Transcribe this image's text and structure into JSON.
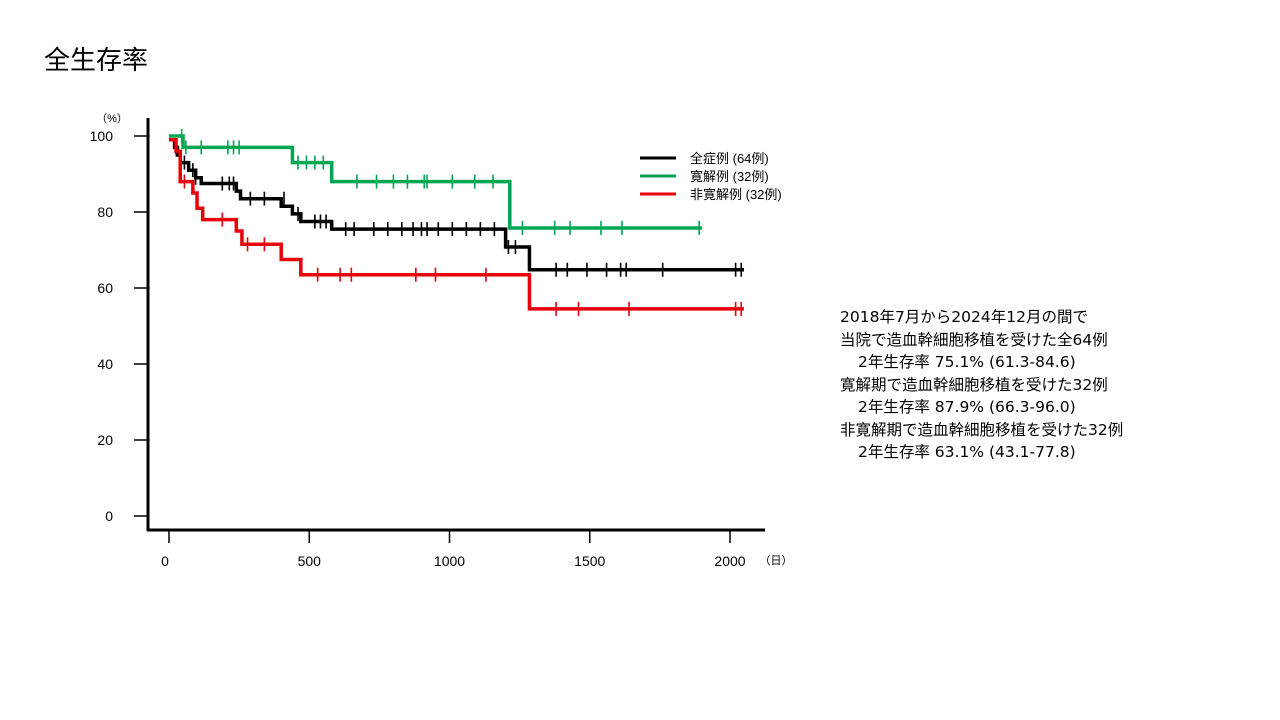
{
  "slide": {
    "title": "全生存率"
  },
  "chart_data": {
    "type": "line",
    "xlim": [
      0,
      2100
    ],
    "ylim": [
      0,
      100
    ],
    "x_ticks": [
      0,
      500,
      1000,
      1500,
      2000
    ],
    "y_ticks": [
      0,
      20,
      40,
      60,
      80,
      100
    ],
    "y_unit": "（%）",
    "x_unit": "（日）",
    "legend_position": "top-right",
    "series": [
      {
        "name": "全症例 (64例)",
        "color": "#000000",
        "steps": [
          [
            0,
            99
          ],
          [
            12,
            99
          ],
          [
            20,
            97
          ],
          [
            30,
            95
          ],
          [
            40,
            93
          ],
          [
            70,
            91
          ],
          [
            95,
            89
          ],
          [
            115,
            87.5
          ],
          [
            240,
            85.5
          ],
          [
            255,
            83.5
          ],
          [
            400,
            81.5
          ],
          [
            440,
            79.5
          ],
          [
            470,
            77.5
          ],
          [
            580,
            75.5
          ],
          [
            1200,
            70.8
          ],
          [
            1285,
            64.8
          ],
          [
            2050,
            64.8
          ]
        ],
        "censors": [
          [
            25,
            97
          ],
          [
            55,
            93
          ],
          [
            85,
            91
          ],
          [
            95,
            89
          ],
          [
            190,
            87.5
          ],
          [
            215,
            87.5
          ],
          [
            230,
            87.5
          ],
          [
            290,
            83.5
          ],
          [
            340,
            83.5
          ],
          [
            410,
            83.5
          ],
          [
            460,
            79.5
          ],
          [
            520,
            77.5
          ],
          [
            540,
            77.5
          ],
          [
            560,
            77.5
          ],
          [
            630,
            75.5
          ],
          [
            660,
            75.5
          ],
          [
            730,
            75.5
          ],
          [
            780,
            75.5
          ],
          [
            830,
            75.5
          ],
          [
            870,
            75.5
          ],
          [
            900,
            75.5
          ],
          [
            920,
            75.5
          ],
          [
            960,
            75.5
          ],
          [
            1010,
            75.5
          ],
          [
            1060,
            75.5
          ],
          [
            1110,
            75.5
          ],
          [
            1160,
            75.5
          ],
          [
            1210,
            70.8
          ],
          [
            1235,
            70.8
          ],
          [
            1380,
            64.8
          ],
          [
            1420,
            64.8
          ],
          [
            1490,
            64.8
          ],
          [
            1560,
            64.8
          ],
          [
            1610,
            64.8
          ],
          [
            1630,
            64.8
          ],
          [
            1760,
            64.8
          ],
          [
            2020,
            64.8
          ],
          [
            2040,
            64.8
          ]
        ]
      },
      {
        "name": "寛解例 (32例)",
        "color": "#00a651",
        "steps": [
          [
            0,
            100
          ],
          [
            40,
            100
          ],
          [
            50,
            97
          ],
          [
            440,
            93
          ],
          [
            580,
            88
          ],
          [
            1215,
            75.8
          ],
          [
            1900,
            75.8
          ]
        ],
        "censors": [
          [
            45,
            100
          ],
          [
            60,
            97
          ],
          [
            115,
            97
          ],
          [
            210,
            97
          ],
          [
            230,
            97
          ],
          [
            250,
            97
          ],
          [
            460,
            93
          ],
          [
            490,
            93
          ],
          [
            520,
            93
          ],
          [
            550,
            93
          ],
          [
            670,
            88
          ],
          [
            740,
            88
          ],
          [
            800,
            88
          ],
          [
            850,
            88
          ],
          [
            910,
            88
          ],
          [
            920,
            88
          ],
          [
            1010,
            88
          ],
          [
            1090,
            88
          ],
          [
            1155,
            88
          ],
          [
            1260,
            75.8
          ],
          [
            1375,
            75.8
          ],
          [
            1430,
            75.8
          ],
          [
            1540,
            75.8
          ],
          [
            1615,
            75.8
          ],
          [
            1890,
            75.8
          ]
        ]
      },
      {
        "name": "非寛解例 (32例)",
        "color": "#e8000b",
        "steps": [
          [
            0,
            99
          ],
          [
            25,
            96
          ],
          [
            40,
            88
          ],
          [
            85,
            85
          ],
          [
            100,
            81
          ],
          [
            120,
            78
          ],
          [
            240,
            75
          ],
          [
            260,
            71.5
          ],
          [
            400,
            67.5
          ],
          [
            470,
            63.5
          ],
          [
            1285,
            54.5
          ],
          [
            2050,
            54.5
          ]
        ],
        "censors": [
          [
            55,
            88
          ],
          [
            190,
            78
          ],
          [
            280,
            71.5
          ],
          [
            340,
            71.5
          ],
          [
            530,
            63.5
          ],
          [
            610,
            63.5
          ],
          [
            650,
            63.5
          ],
          [
            880,
            63.5
          ],
          [
            950,
            63.5
          ],
          [
            1130,
            63.5
          ],
          [
            1380,
            54.5
          ],
          [
            1460,
            54.5
          ],
          [
            1640,
            54.5
          ],
          [
            2020,
            54.5
          ],
          [
            2040,
            54.5
          ]
        ]
      }
    ]
  },
  "stats_lines": [
    "2018年7月から2024年12月の間で",
    "当院で造血幹細胞移植を受けた全64例",
    "2年生存率 75.1% (61.3-84.6)",
    "寛解期で造血幹細胞移植を受けた32例",
    "2年生存率 87.9% (66.3-96.0)",
    "非寛解期で造血幹細胞移植を受けた32例",
    "2年生存率 63.1% (43.1-77.8)"
  ]
}
